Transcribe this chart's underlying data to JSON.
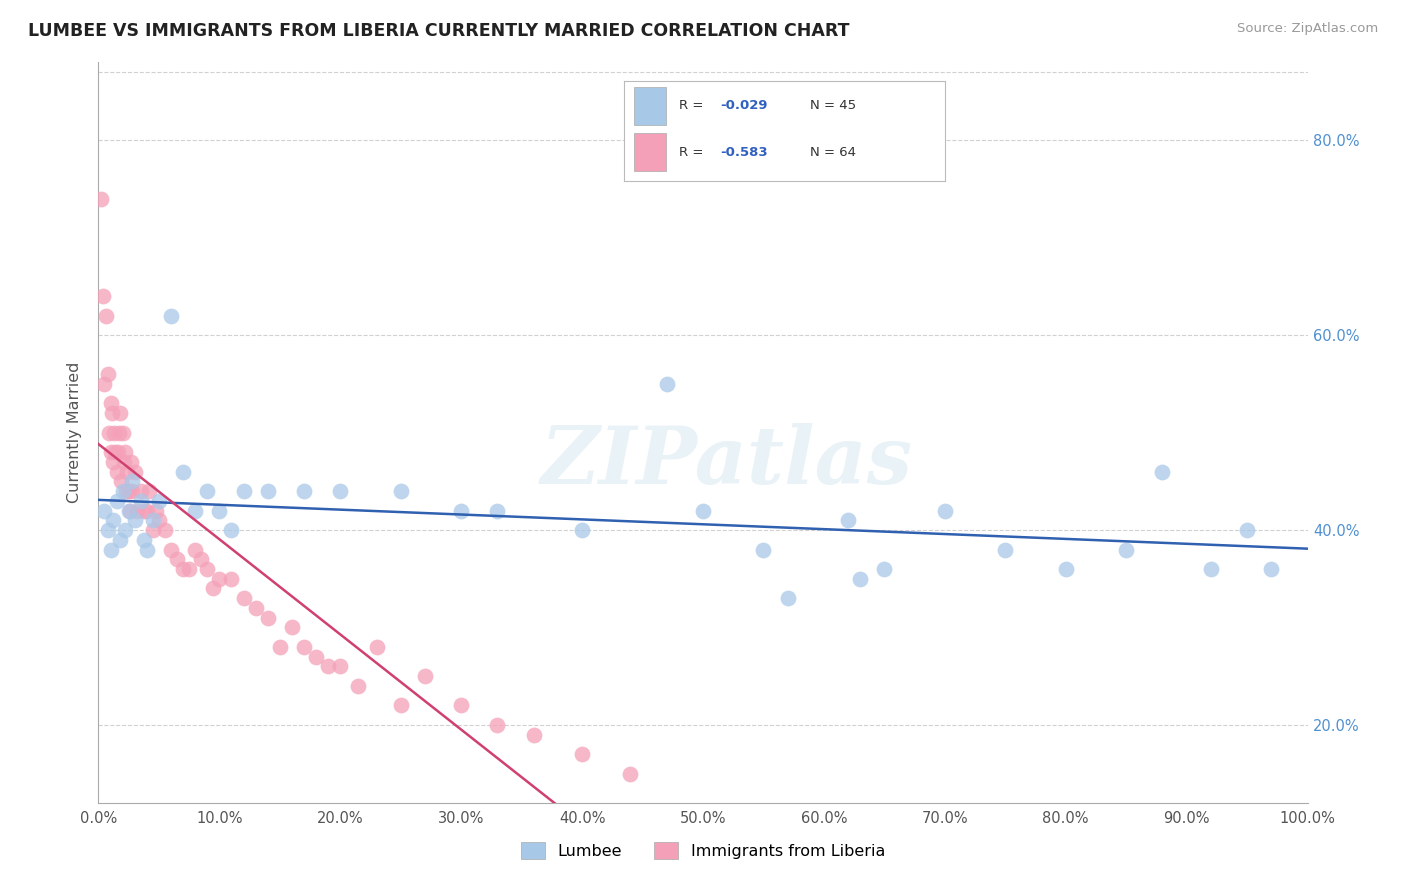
{
  "title": "LUMBEE VS IMMIGRANTS FROM LIBERIA CURRENTLY MARRIED CORRELATION CHART",
  "source_text": "Source: ZipAtlas.com",
  "ylabel": "Currently Married",
  "xlim": [
    0.0,
    1.0
  ],
  "ylim": [
    0.12,
    0.88
  ],
  "lumbee_color": "#a8c8e8",
  "lumbee_line_color": "#3060b0",
  "liberia_color": "#f4a0b8",
  "liberia_line_color": "#d04070",
  "liberia_dash_color": "#cccccc",
  "watermark": "ZIPatlas",
  "background": "#ffffff",
  "grid_color": "#cccccc",
  "ytick_color": "#5090d0",
  "xtick_color": "#555555",
  "lumbee_x": [
    0.005,
    0.008,
    0.01,
    0.012,
    0.015,
    0.018,
    0.02,
    0.022,
    0.025,
    0.028,
    0.03,
    0.035,
    0.038,
    0.04,
    0.045,
    0.05,
    0.06,
    0.07,
    0.08,
    0.09,
    0.1,
    0.11,
    0.12,
    0.14,
    0.17,
    0.2,
    0.25,
    0.3,
    0.33,
    0.4,
    0.47,
    0.5,
    0.55,
    0.62,
    0.65,
    0.7,
    0.75,
    0.8,
    0.85,
    0.88,
    0.92,
    0.95,
    0.97,
    0.63,
    0.57
  ],
  "lumbee_y": [
    0.42,
    0.4,
    0.38,
    0.41,
    0.43,
    0.39,
    0.44,
    0.4,
    0.42,
    0.45,
    0.41,
    0.43,
    0.39,
    0.38,
    0.41,
    0.43,
    0.62,
    0.46,
    0.42,
    0.44,
    0.42,
    0.4,
    0.44,
    0.44,
    0.44,
    0.44,
    0.44,
    0.42,
    0.42,
    0.4,
    0.55,
    0.42,
    0.38,
    0.41,
    0.36,
    0.42,
    0.38,
    0.36,
    0.38,
    0.46,
    0.36,
    0.4,
    0.36,
    0.35,
    0.33
  ],
  "liberia_x": [
    0.002,
    0.004,
    0.005,
    0.006,
    0.008,
    0.009,
    0.01,
    0.01,
    0.011,
    0.012,
    0.013,
    0.014,
    0.015,
    0.016,
    0.017,
    0.018,
    0.019,
    0.02,
    0.021,
    0.022,
    0.023,
    0.024,
    0.025,
    0.026,
    0.027,
    0.028,
    0.03,
    0.032,
    0.035,
    0.038,
    0.04,
    0.042,
    0.045,
    0.048,
    0.05,
    0.055,
    0.06,
    0.065,
    0.07,
    0.075,
    0.08,
    0.085,
    0.09,
    0.095,
    0.1,
    0.11,
    0.12,
    0.13,
    0.14,
    0.15,
    0.16,
    0.17,
    0.18,
    0.19,
    0.2,
    0.215,
    0.23,
    0.25,
    0.27,
    0.3,
    0.33,
    0.36,
    0.4,
    0.44
  ],
  "liberia_y": [
    0.74,
    0.64,
    0.55,
    0.62,
    0.56,
    0.5,
    0.53,
    0.48,
    0.52,
    0.47,
    0.5,
    0.48,
    0.46,
    0.48,
    0.5,
    0.52,
    0.45,
    0.5,
    0.47,
    0.48,
    0.44,
    0.46,
    0.44,
    0.42,
    0.47,
    0.44,
    0.46,
    0.42,
    0.44,
    0.42,
    0.42,
    0.44,
    0.4,
    0.42,
    0.41,
    0.4,
    0.38,
    0.37,
    0.36,
    0.36,
    0.38,
    0.37,
    0.36,
    0.34,
    0.35,
    0.35,
    0.33,
    0.32,
    0.31,
    0.28,
    0.3,
    0.28,
    0.27,
    0.26,
    0.26,
    0.24,
    0.28,
    0.22,
    0.25,
    0.22,
    0.2,
    0.19,
    0.17,
    0.15
  ],
  "lumbee_R": "-0.029",
  "lumbee_N": "45",
  "liberia_R": "-0.583",
  "liberia_N": "64",
  "yticks": [
    0.2,
    0.4,
    0.6,
    0.8
  ],
  "xticks": [
    0.0,
    0.1,
    0.2,
    0.3,
    0.4,
    0.5,
    0.6,
    0.7,
    0.8,
    0.9,
    1.0
  ]
}
